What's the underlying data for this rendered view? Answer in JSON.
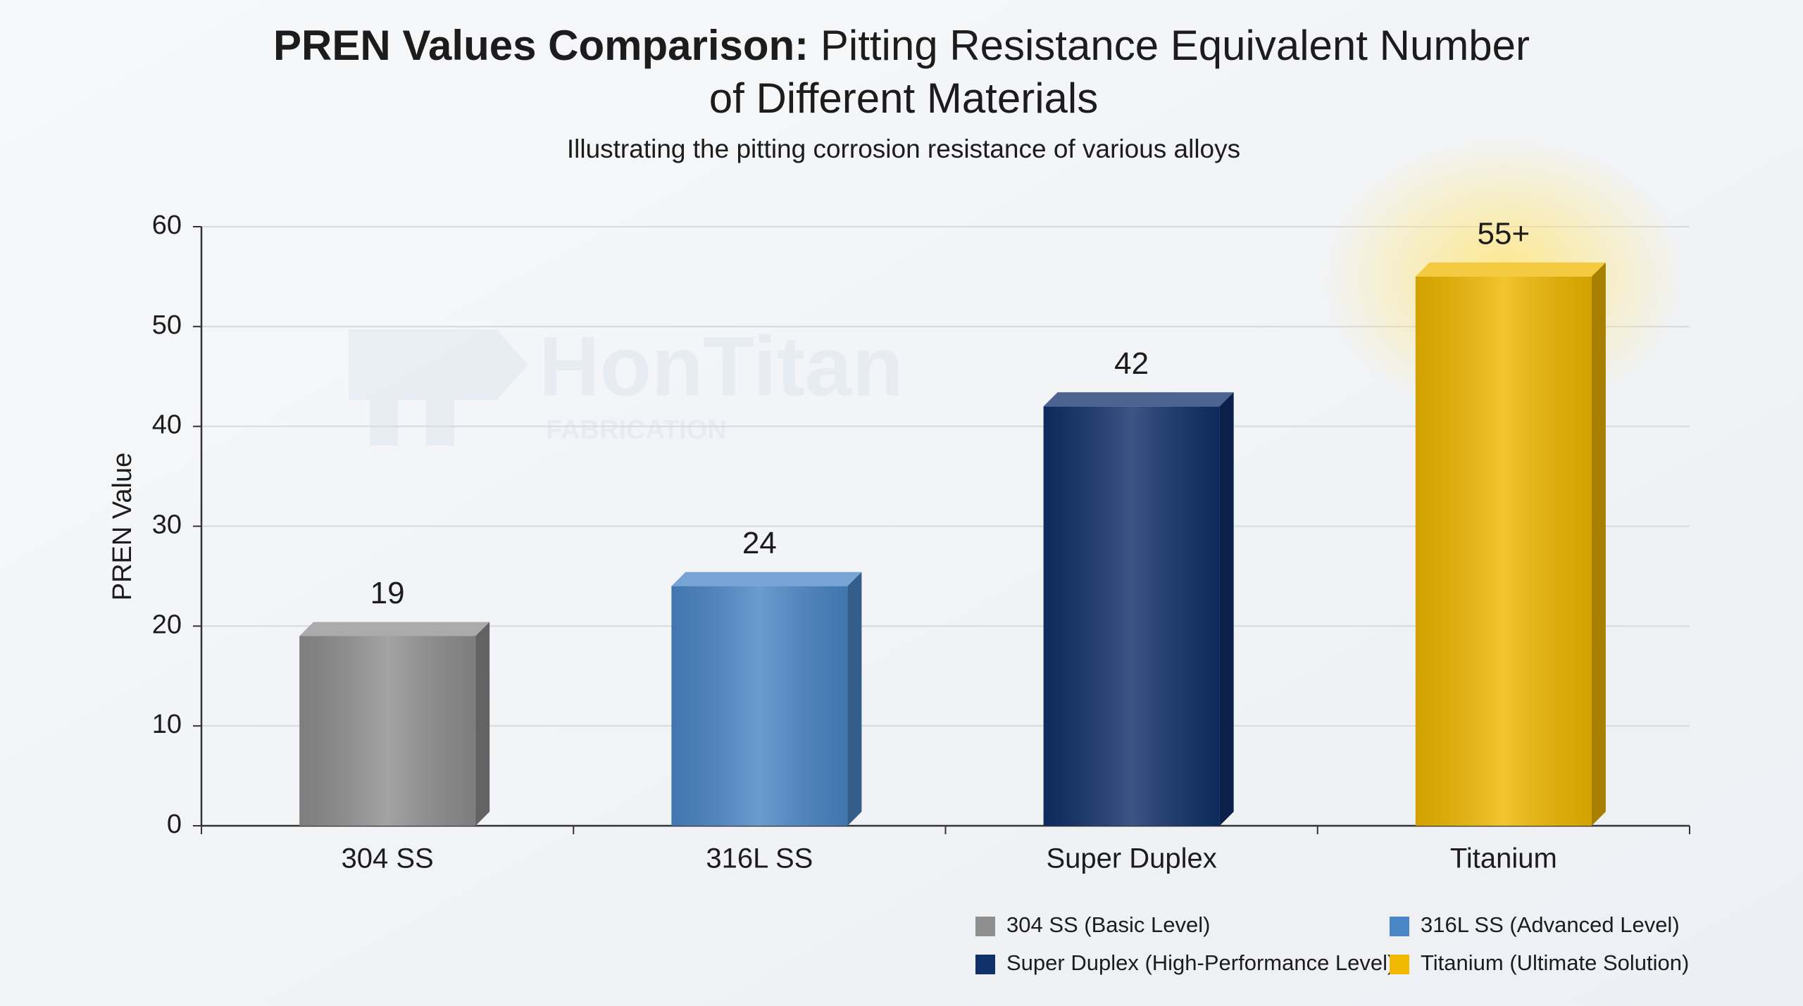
{
  "chart_data": {
    "type": "bar",
    "title": [
      "PREN Values Comparison:",
      "Pitting Resistance Equivalent Number",
      "of Different Materials"
    ],
    "subtitle": "Illustrating the pitting corrosion resistance of various alloys",
    "watermark": [
      "HonTitan",
      "FABRICATION"
    ],
    "y_label": "PREN Value",
    "categories": [
      "304 SS",
      "316L SS",
      "Super Duplex",
      "Titanium"
    ],
    "values": [
      19,
      24,
      42,
      55
    ],
    "value_labels": [
      "19",
      "24",
      "42",
      "55+"
    ],
    "colors": [
      "#8f8f8f",
      "#4a86c6",
      "#10306a",
      "#f0b800"
    ],
    "legend_labels": [
      "304 SS (Basic Level)",
      "316L SS (Advanced Level)",
      "Super Duplex (High-Performance Level)",
      "Titanium (Ultimate Solution)"
    ],
    "legend_position": "bottom-right",
    "ylim": [
      0,
      60
    ],
    "yticks": [
      0,
      10,
      20,
      30,
      40,
      50,
      60
    ],
    "grid": true
  }
}
